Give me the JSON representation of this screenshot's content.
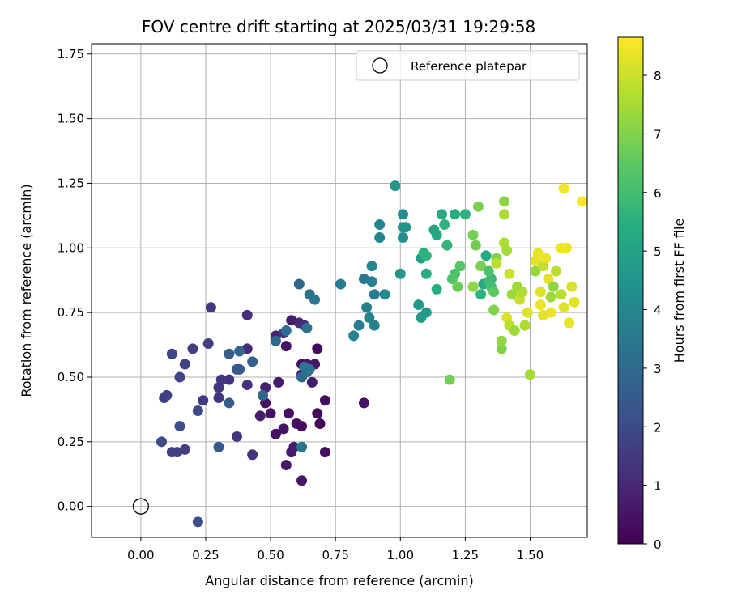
{
  "chart_data": {
    "type": "scatter",
    "title": "FOV centre drift starting at 2025/03/31 19:29:58",
    "xlabel": "Angular distance from reference (arcmin)",
    "ylabel": "Rotation from reference (arcmin)",
    "xlim": [
      -0.19,
      1.72
    ],
    "ylim": [
      -0.12,
      1.79
    ],
    "xticks": [
      0.0,
      0.25,
      0.5,
      0.75,
      1.0,
      1.25,
      1.5
    ],
    "xtick_labels": [
      "0.00",
      "0.25",
      "0.50",
      "0.75",
      "1.00",
      "1.25",
      "1.50"
    ],
    "yticks": [
      0.0,
      0.25,
      0.5,
      0.75,
      1.0,
      1.25,
      1.5,
      1.75
    ],
    "ytick_labels": [
      "0.00",
      "0.25",
      "0.50",
      "0.75",
      "1.00",
      "1.25",
      "1.50",
      "1.75"
    ],
    "grid": true,
    "legend": {
      "position": "top-right",
      "entries": [
        {
          "label": "Reference platepar",
          "marker": "open-circle"
        }
      ]
    },
    "reference_point": {
      "x": 0.0,
      "y": 0.0
    },
    "colorbar": {
      "label": "Hours from first FF file",
      "range": [
        0,
        8.65
      ],
      "ticks": [
        0,
        1,
        2,
        3,
        4,
        5,
        6,
        7,
        8
      ],
      "tick_labels": [
        "0",
        "1",
        "2",
        "3",
        "4",
        "5",
        "6",
        "7",
        "8"
      ],
      "colormap": "viridis"
    },
    "points": [
      {
        "x": 0.62,
        "y": 0.1,
        "t": 0.5
      },
      {
        "x": 0.56,
        "y": 0.16,
        "t": 0.6
      },
      {
        "x": 0.58,
        "y": 0.21,
        "t": 0.6
      },
      {
        "x": 0.59,
        "y": 0.23,
        "t": 0.7
      },
      {
        "x": 0.71,
        "y": 0.21,
        "t": 0.3
      },
      {
        "x": 0.55,
        "y": 0.3,
        "t": 0.5
      },
      {
        "x": 0.52,
        "y": 0.28,
        "t": 0.4
      },
      {
        "x": 0.6,
        "y": 0.32,
        "t": 0.3
      },
      {
        "x": 0.62,
        "y": 0.31,
        "t": 0.2
      },
      {
        "x": 0.69,
        "y": 0.32,
        "t": 0.1
      },
      {
        "x": 0.68,
        "y": 0.36,
        "t": 0.2
      },
      {
        "x": 0.57,
        "y": 0.36,
        "t": 0.4
      },
      {
        "x": 0.5,
        "y": 0.36,
        "t": 0.4
      },
      {
        "x": 0.46,
        "y": 0.35,
        "t": 0.7
      },
      {
        "x": 0.48,
        "y": 0.4,
        "t": 0.4
      },
      {
        "x": 0.71,
        "y": 0.41,
        "t": 0.3
      },
      {
        "x": 0.86,
        "y": 0.4,
        "t": 0.4
      },
      {
        "x": 0.48,
        "y": 0.46,
        "t": 0.8
      },
      {
        "x": 0.53,
        "y": 0.48,
        "t": 0.6
      },
      {
        "x": 0.66,
        "y": 0.48,
        "t": 0.7
      },
      {
        "x": 0.62,
        "y": 0.51,
        "t": 0.6
      },
      {
        "x": 0.64,
        "y": 0.55,
        "t": 0.4
      },
      {
        "x": 0.67,
        "y": 0.55,
        "t": 0.5
      },
      {
        "x": 0.62,
        "y": 0.55,
        "t": 0.4
      },
      {
        "x": 0.68,
        "y": 0.61,
        "t": 0.2
      },
      {
        "x": 0.56,
        "y": 0.62,
        "t": 0.5
      },
      {
        "x": 0.52,
        "y": 0.66,
        "t": 0.8
      },
      {
        "x": 0.55,
        "y": 0.67,
        "t": 1.2
      },
      {
        "x": 0.58,
        "y": 0.72,
        "t": 0.7
      },
      {
        "x": 0.61,
        "y": 0.71,
        "t": 1.0
      },
      {
        "x": 0.63,
        "y": 0.7,
        "t": 1.1
      },
      {
        "x": 0.41,
        "y": 0.74,
        "t": 1.1
      },
      {
        "x": 0.41,
        "y": 0.61,
        "t": 1.0
      },
      {
        "x": 0.41,
        "y": 0.47,
        "t": 1.2
      },
      {
        "x": 0.43,
        "y": 0.2,
        "t": 1.3
      },
      {
        "x": 0.37,
        "y": 0.27,
        "t": 1.3
      },
      {
        "x": 0.34,
        "y": 0.49,
        "t": 1.3
      },
      {
        "x": 0.3,
        "y": 0.42,
        "t": 1.4
      },
      {
        "x": 0.3,
        "y": 0.46,
        "t": 1.4
      },
      {
        "x": 0.31,
        "y": 0.49,
        "t": 1.4
      },
      {
        "x": 0.27,
        "y": 0.77,
        "t": 1.5
      },
      {
        "x": 0.26,
        "y": 0.63,
        "t": 1.6
      },
      {
        "x": 0.2,
        "y": 0.61,
        "t": 1.6
      },
      {
        "x": 0.17,
        "y": 0.55,
        "t": 1.7
      },
      {
        "x": 0.12,
        "y": 0.59,
        "t": 1.8
      },
      {
        "x": 0.15,
        "y": 0.5,
        "t": 1.8
      },
      {
        "x": 0.09,
        "y": 0.42,
        "t": 1.6
      },
      {
        "x": 0.1,
        "y": 0.43,
        "t": 1.7
      },
      {
        "x": 0.24,
        "y": 0.41,
        "t": 1.5
      },
      {
        "x": 0.22,
        "y": 0.37,
        "t": 2.0
      },
      {
        "x": 0.17,
        "y": 0.22,
        "t": 1.6
      },
      {
        "x": 0.12,
        "y": 0.21,
        "t": 1.7
      },
      {
        "x": 0.14,
        "y": 0.21,
        "t": 1.7
      },
      {
        "x": 0.15,
        "y": 0.31,
        "t": 2.1
      },
      {
        "x": 0.08,
        "y": 0.25,
        "t": 2.0
      },
      {
        "x": 0.22,
        "y": -0.06,
        "t": 2.1
      },
      {
        "x": 0.3,
        "y": 0.23,
        "t": 2.4
      },
      {
        "x": 0.34,
        "y": 0.4,
        "t": 2.5
      },
      {
        "x": 0.37,
        "y": 0.53,
        "t": 2.4
      },
      {
        "x": 0.38,
        "y": 0.53,
        "t": 2.5
      },
      {
        "x": 0.34,
        "y": 0.59,
        "t": 2.6
      },
      {
        "x": 0.38,
        "y": 0.6,
        "t": 2.8
      },
      {
        "x": 0.43,
        "y": 0.56,
        "t": 2.7
      },
      {
        "x": 0.47,
        "y": 0.43,
        "t": 2.9
      },
      {
        "x": 0.52,
        "y": 0.64,
        "t": 3.0
      },
      {
        "x": 0.56,
        "y": 0.68,
        "t": 3.1
      },
      {
        "x": 0.62,
        "y": 0.5,
        "t": 3.0
      },
      {
        "x": 0.64,
        "y": 0.52,
        "t": 3.2
      },
      {
        "x": 0.65,
        "y": 0.53,
        "t": 3.3
      },
      {
        "x": 0.63,
        "y": 0.54,
        "t": 3.4
      },
      {
        "x": 0.62,
        "y": 0.23,
        "t": 3.4
      },
      {
        "x": 0.61,
        "y": 0.86,
        "t": 3.0
      },
      {
        "x": 0.65,
        "y": 0.82,
        "t": 3.2
      },
      {
        "x": 0.67,
        "y": 0.8,
        "t": 3.3
      },
      {
        "x": 0.64,
        "y": 0.69,
        "t": 3.3
      },
      {
        "x": 0.77,
        "y": 0.86,
        "t": 3.6
      },
      {
        "x": 0.82,
        "y": 0.66,
        "t": 3.9
      },
      {
        "x": 0.84,
        "y": 0.7,
        "t": 3.7
      },
      {
        "x": 0.86,
        "y": 0.88,
        "t": 3.6
      },
      {
        "x": 0.87,
        "y": 0.77,
        "t": 3.8
      },
      {
        "x": 0.88,
        "y": 0.73,
        "t": 3.9
      },
      {
        "x": 0.89,
        "y": 0.93,
        "t": 3.9
      },
      {
        "x": 0.89,
        "y": 0.87,
        "t": 3.7
      },
      {
        "x": 0.9,
        "y": 0.82,
        "t": 3.6
      },
      {
        "x": 0.9,
        "y": 0.7,
        "t": 3.8
      },
      {
        "x": 0.92,
        "y": 1.04,
        "t": 4.0
      },
      {
        "x": 0.92,
        "y": 1.09,
        "t": 3.9
      },
      {
        "x": 0.94,
        "y": 0.82,
        "t": 4.2
      },
      {
        "x": 0.98,
        "y": 1.24,
        "t": 4.6
      },
      {
        "x": 1.0,
        "y": 0.9,
        "t": 4.6
      },
      {
        "x": 1.01,
        "y": 1.04,
        "t": 4.3
      },
      {
        "x": 1.01,
        "y": 1.08,
        "t": 4.4
      },
      {
        "x": 1.01,
        "y": 1.13,
        "t": 4.3
      },
      {
        "x": 1.02,
        "y": 1.08,
        "t": 4.5
      },
      {
        "x": 1.07,
        "y": 0.78,
        "t": 4.6
      },
      {
        "x": 1.08,
        "y": 0.73,
        "t": 4.8
      },
      {
        "x": 1.1,
        "y": 0.75,
        "t": 4.7
      },
      {
        "x": 1.08,
        "y": 0.96,
        "t": 5.0
      },
      {
        "x": 1.09,
        "y": 0.98,
        "t": 5.5
      },
      {
        "x": 1.1,
        "y": 0.97,
        "t": 5.6
      },
      {
        "x": 1.1,
        "y": 0.9,
        "t": 5.4
      },
      {
        "x": 1.13,
        "y": 1.07,
        "t": 5.1
      },
      {
        "x": 1.14,
        "y": 1.05,
        "t": 5.2
      },
      {
        "x": 1.14,
        "y": 0.84,
        "t": 5.4
      },
      {
        "x": 1.16,
        "y": 1.13,
        "t": 5.3
      },
      {
        "x": 1.17,
        "y": 1.09,
        "t": 5.6
      },
      {
        "x": 1.18,
        "y": 1.01,
        "t": 5.7
      },
      {
        "x": 1.21,
        "y": 1.13,
        "t": 5.4
      },
      {
        "x": 1.21,
        "y": 0.9,
        "t": 6.1
      },
      {
        "x": 1.2,
        "y": 0.88,
        "t": 6.3
      },
      {
        "x": 1.23,
        "y": 0.93,
        "t": 6.4
      },
      {
        "x": 1.22,
        "y": 0.85,
        "t": 6.7
      },
      {
        "x": 1.25,
        "y": 1.13,
        "t": 5.6
      },
      {
        "x": 1.19,
        "y": 0.49,
        "t": 6.8
      },
      {
        "x": 1.28,
        "y": 1.05,
        "t": 6.8
      },
      {
        "x": 1.3,
        "y": 1.16,
        "t": 6.9
      },
      {
        "x": 1.29,
        "y": 1.01,
        "t": 6.8
      },
      {
        "x": 1.28,
        "y": 0.85,
        "t": 7.2
      },
      {
        "x": 1.31,
        "y": 0.93,
        "t": 6.9
      },
      {
        "x": 1.32,
        "y": 0.86,
        "t": 5.2
      },
      {
        "x": 1.31,
        "y": 0.82,
        "t": 5.6
      },
      {
        "x": 1.33,
        "y": 0.97,
        "t": 5.3
      },
      {
        "x": 1.35,
        "y": 0.88,
        "t": 5.8
      },
      {
        "x": 1.34,
        "y": 0.87,
        "t": 5.9
      },
      {
        "x": 1.34,
        "y": 0.91,
        "t": 6.2
      },
      {
        "x": 1.35,
        "y": 0.85,
        "t": 6.0
      },
      {
        "x": 1.36,
        "y": 0.83,
        "t": 6.5
      },
      {
        "x": 1.36,
        "y": 0.76,
        "t": 7.0
      },
      {
        "x": 1.37,
        "y": 0.96,
        "t": 7.0
      },
      {
        "x": 1.37,
        "y": 0.94,
        "t": 7.8
      },
      {
        "x": 1.39,
        "y": 0.61,
        "t": 7.0
      },
      {
        "x": 1.39,
        "y": 0.64,
        "t": 7.2
      },
      {
        "x": 1.4,
        "y": 1.02,
        "t": 7.6
      },
      {
        "x": 1.4,
        "y": 1.18,
        "t": 7.2
      },
      {
        "x": 1.4,
        "y": 1.13,
        "t": 7.6
      },
      {
        "x": 1.41,
        "y": 0.99,
        "t": 7.5
      },
      {
        "x": 1.41,
        "y": 0.73,
        "t": 8.2
      },
      {
        "x": 1.42,
        "y": 0.7,
        "t": 7.8
      },
      {
        "x": 1.42,
        "y": 0.9,
        "t": 8.0
      },
      {
        "x": 1.43,
        "y": 0.82,
        "t": 7.4
      },
      {
        "x": 1.44,
        "y": 0.68,
        "t": 7.4
      },
      {
        "x": 1.45,
        "y": 0.85,
        "t": 7.4
      },
      {
        "x": 1.46,
        "y": 0.8,
        "t": 8.0
      },
      {
        "x": 1.47,
        "y": 0.83,
        "t": 7.6
      },
      {
        "x": 1.48,
        "y": 0.7,
        "t": 7.6
      },
      {
        "x": 1.49,
        "y": 0.75,
        "t": 8.2
      },
      {
        "x": 1.5,
        "y": 0.51,
        "t": 7.5
      },
      {
        "x": 1.52,
        "y": 0.95,
        "t": 8.3
      },
      {
        "x": 1.52,
        "y": 0.91,
        "t": 7.3
      },
      {
        "x": 1.53,
        "y": 0.98,
        "t": 8.4
      },
      {
        "x": 1.54,
        "y": 0.83,
        "t": 8.2
      },
      {
        "x": 1.54,
        "y": 0.78,
        "t": 8.4
      },
      {
        "x": 1.55,
        "y": 0.74,
        "t": 8.3
      },
      {
        "x": 1.55,
        "y": 0.93,
        "t": 7.9
      },
      {
        "x": 1.56,
        "y": 0.96,
        "t": 8.4
      },
      {
        "x": 1.57,
        "y": 0.88,
        "t": 8.3
      },
      {
        "x": 1.58,
        "y": 0.75,
        "t": 8.4
      },
      {
        "x": 1.58,
        "y": 0.81,
        "t": 7.4
      },
      {
        "x": 1.59,
        "y": 0.85,
        "t": 7.2
      },
      {
        "x": 1.6,
        "y": 0.91,
        "t": 7.8
      },
      {
        "x": 1.62,
        "y": 1.0,
        "t": 8.5
      },
      {
        "x": 1.62,
        "y": 0.82,
        "t": 7.7
      },
      {
        "x": 1.63,
        "y": 1.23,
        "t": 8.5
      },
      {
        "x": 1.63,
        "y": 0.77,
        "t": 8.2
      },
      {
        "x": 1.64,
        "y": 1.0,
        "t": 8.4
      },
      {
        "x": 1.65,
        "y": 0.71,
        "t": 8.4
      },
      {
        "x": 1.66,
        "y": 0.85,
        "t": 8.2
      },
      {
        "x": 1.67,
        "y": 0.79,
        "t": 8.3
      },
      {
        "x": 1.7,
        "y": 1.18,
        "t": 8.6
      }
    ]
  }
}
